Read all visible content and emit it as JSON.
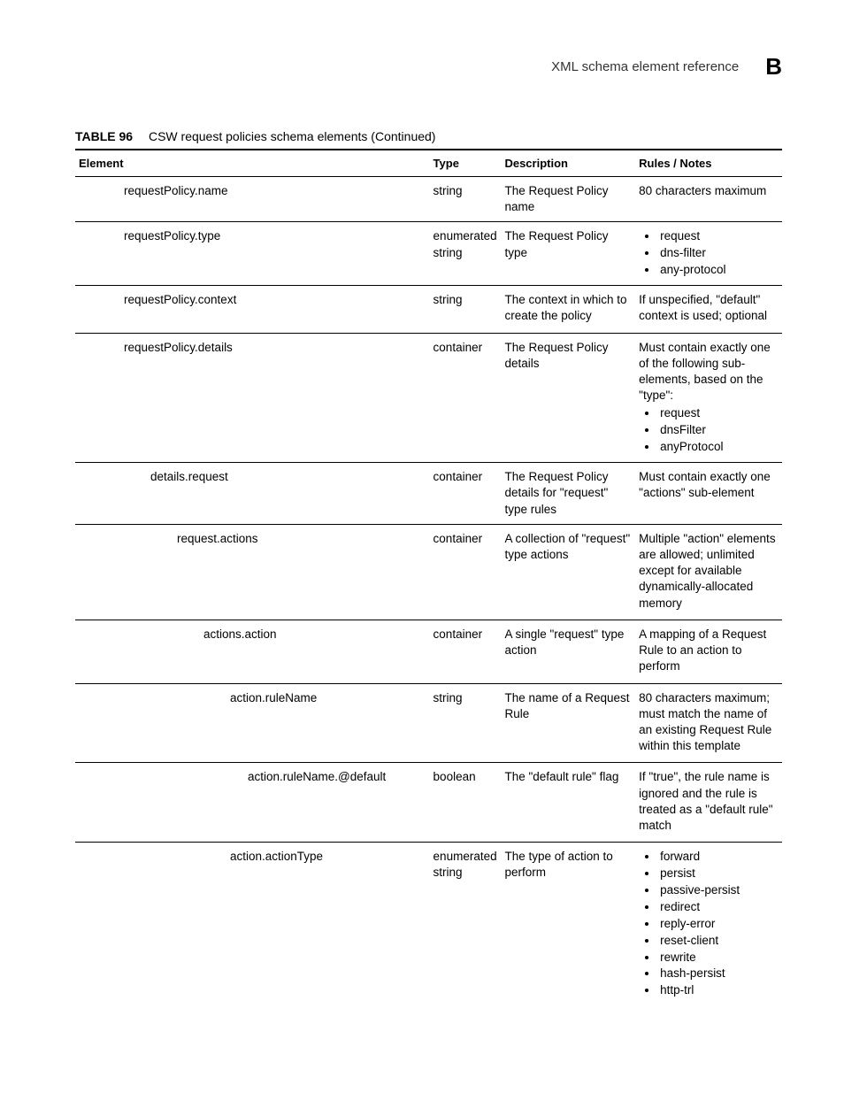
{
  "header": {
    "title": "XML schema element reference",
    "section_letter": "B"
  },
  "table": {
    "label": "TABLE 96",
    "caption": "CSW request policies schema elements (Continued)",
    "columns": {
      "element": "Element",
      "type": "Type",
      "description": "Description",
      "rules": "Rules / Notes"
    },
    "rows": [
      {
        "indent": 55,
        "element": "requestPolicy.name",
        "type": "string",
        "description": "The Request Policy name",
        "rules_text": "80 characters maximum"
      },
      {
        "indent": 55,
        "element": "requestPolicy.type",
        "type": "enumerated string",
        "description": "The Request Policy type",
        "rules_bullets": [
          "request",
          "dns-filter",
          "any-protocol"
        ]
      },
      {
        "indent": 55,
        "element": "requestPolicy.context",
        "type": "string",
        "description": "The context in which to create the policy",
        "rules_text": "If unspecified, \"default\" context is used; optional"
      },
      {
        "indent": 55,
        "element": "requestPolicy.details",
        "type": "container",
        "description": "The Request Policy details",
        "rules_text": "Must contain exactly one of the following sub-elements, based on the \"type\":",
        "rules_bullets": [
          "request",
          "dnsFilter",
          "anyProtocol"
        ]
      },
      {
        "indent": 85,
        "element": "details.request",
        "type": "container",
        "description": "The Request Policy details for \"request\" type rules",
        "rules_text": "Must contain exactly one \"actions\" sub-element"
      },
      {
        "indent": 115,
        "element": "request.actions",
        "type": "container",
        "description": "A collection of \"request\" type actions",
        "rules_text": "Multiple \"action\" elements are allowed; unlimited except for available dynamically-allocated memory"
      },
      {
        "indent": 145,
        "element": "actions.action",
        "type": "container",
        "description": "A single \"request\" type action",
        "rules_text": "A mapping of a Request Rule to an action to perform"
      },
      {
        "indent": 175,
        "element": "action.ruleName",
        "type": "string",
        "description": "The name of a Request Rule",
        "rules_text": "80 characters maximum; must match the name of an existing Request Rule within this template"
      },
      {
        "indent": 195,
        "element": "action.ruleName.@default",
        "type": "boolean",
        "description": "The \"default rule\" flag",
        "rules_text": "If \"true\", the rule name is ignored and the rule is treated as a \"default rule\" match"
      },
      {
        "indent": 175,
        "element": "action.actionType",
        "type": "enumerated string",
        "description": "The type of action to perform",
        "rules_bullets": [
          "forward",
          "persist",
          "passive-persist",
          "redirect",
          "reply-error",
          "reset-client",
          "rewrite",
          "hash-persist",
          "http-trl"
        ]
      }
    ]
  }
}
